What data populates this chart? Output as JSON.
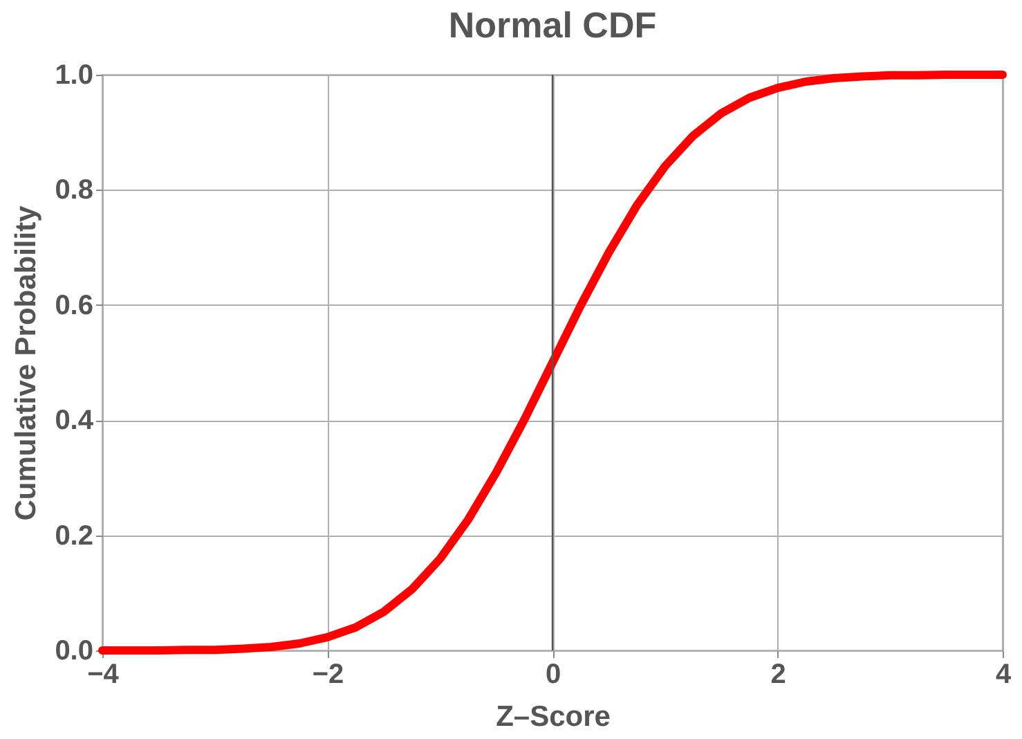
{
  "chart_data": {
    "type": "line",
    "title": "Normal CDF",
    "xlabel": "Z–Score",
    "ylabel": "Cumulative Probability",
    "x": [
      -4,
      -3.75,
      -3.5,
      -3.25,
      -3,
      -2.75,
      -2.5,
      -2.25,
      -2,
      -1.75,
      -1.5,
      -1.25,
      -1,
      -0.75,
      -0.5,
      -0.25,
      0,
      0.25,
      0.5,
      0.75,
      1,
      1.25,
      1.5,
      1.75,
      2,
      2.25,
      2.5,
      2.75,
      3,
      3.25,
      3.5,
      3.75,
      4
    ],
    "series": [
      {
        "color": "#ff0000",
        "values": [
          0.0,
          0.0,
          0.0,
          0.001,
          0.001,
          0.003,
          0.006,
          0.012,
          0.023,
          0.04,
          0.067,
          0.106,
          0.159,
          0.227,
          0.309,
          0.401,
          0.5,
          0.599,
          0.691,
          0.773,
          0.841,
          0.894,
          0.933,
          0.96,
          0.977,
          0.988,
          0.994,
          0.997,
          0.999,
          0.999,
          1.0,
          1.0,
          1.0
        ]
      }
    ],
    "xlim": [
      -4,
      4
    ],
    "ylim": [
      0,
      1
    ],
    "xticks": [
      -4,
      -2,
      0,
      2,
      4
    ],
    "yticks": [
      {
        "value": 0,
        "label": "0.0"
      },
      {
        "value": 0.2,
        "label": "0.2"
      },
      {
        "value": 0.4,
        "label": "0.4"
      },
      {
        "value": 0.6,
        "label": "0.6"
      },
      {
        "value": 0.8,
        "label": "0.8"
      },
      {
        "value": 1,
        "label": "1.0"
      }
    ],
    "ref_lines": [
      {
        "axis": "x",
        "value": 0,
        "color": "#555555"
      }
    ],
    "grid": true,
    "marker": "none",
    "line_style": "solid"
  }
}
